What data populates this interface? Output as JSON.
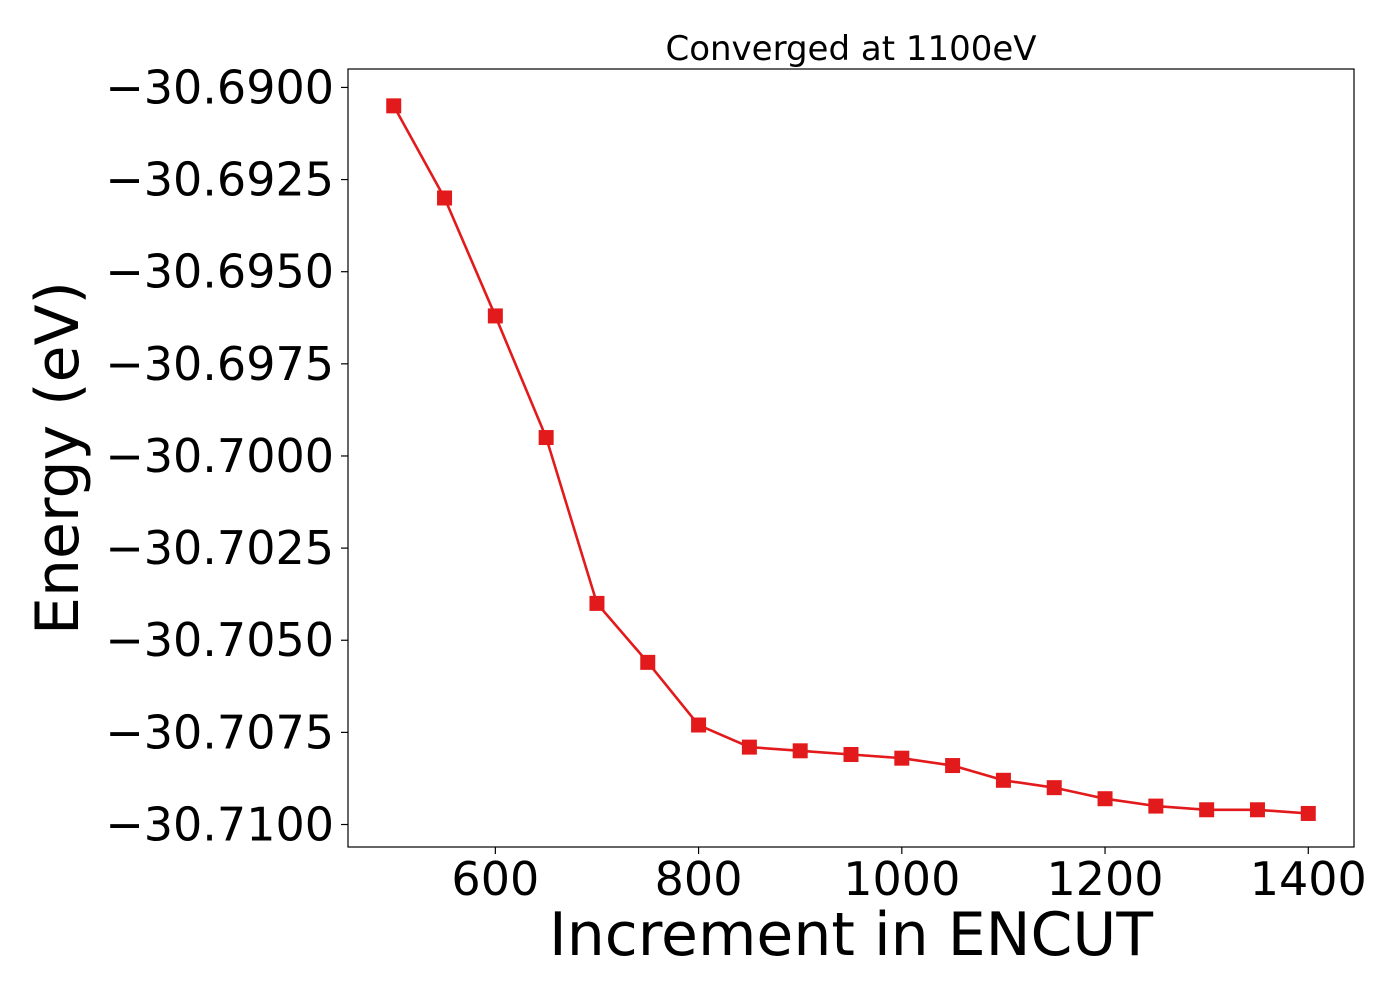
{
  "chart_data": {
    "type": "line",
    "title": "Converged at 1100eV",
    "xlabel": "Increment in ENCUT",
    "ylabel": "Energy (eV)",
    "x": [
      500,
      550,
      600,
      650,
      700,
      750,
      800,
      850,
      900,
      950,
      1000,
      1050,
      1100,
      1150,
      1200,
      1250,
      1300,
      1350,
      1400
    ],
    "series": [
      {
        "values": [
          -30.6905,
          -30.693,
          -30.6962,
          -30.6995,
          -30.704,
          -30.7056,
          -30.7073,
          -30.7079,
          -30.708,
          -30.7081,
          -30.7082,
          -30.7084,
          -30.7088,
          -30.709,
          -30.7093,
          -30.7095,
          -30.7096,
          -30.7096,
          -30.7097
        ],
        "color": "#e31a1c",
        "marker": "square"
      }
    ],
    "xlim": [
      455,
      1445
    ],
    "ylim": [
      -30.71061,
      -30.6895
    ],
    "xticks": [
      600,
      800,
      1000,
      1200,
      1400
    ],
    "xtick_labels": [
      "600",
      "800",
      "1000",
      "1200",
      "1400"
    ],
    "yticks": [
      -30.69,
      -30.6925,
      -30.695,
      -30.6975,
      -30.7,
      -30.7025,
      -30.705,
      -30.7075,
      -30.71
    ],
    "ytick_labels": [
      "−30.6900",
      "−30.6925",
      "−30.6950",
      "−30.6975",
      "−30.7000",
      "−30.7025",
      "−30.7050",
      "−30.7075",
      "−30.7100"
    ],
    "grid": false,
    "legend": "none"
  }
}
